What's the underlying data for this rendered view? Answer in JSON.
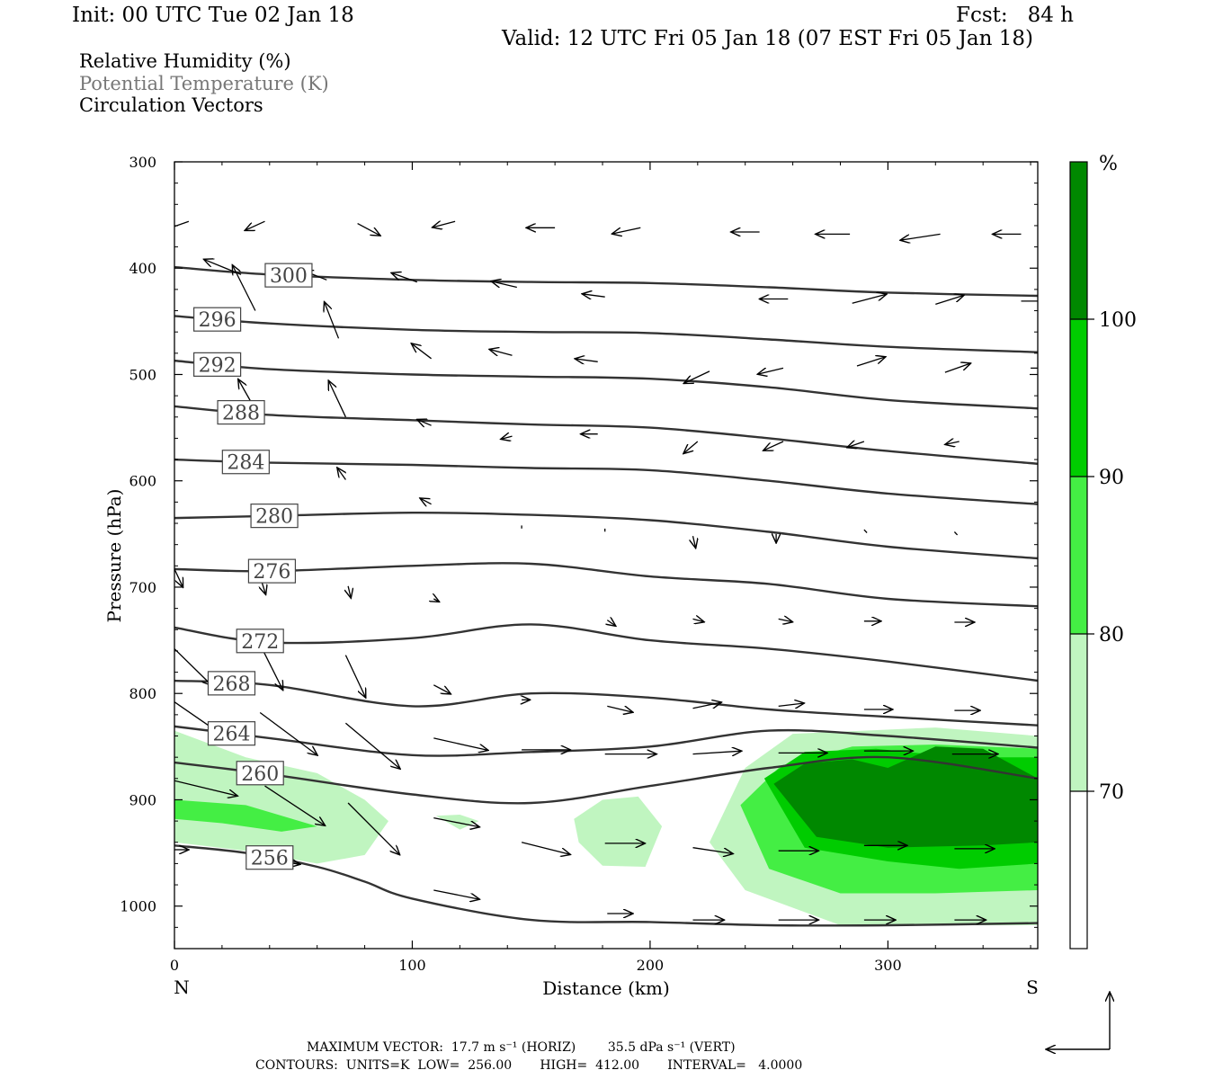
{
  "header": {
    "init": "Init: 00 UTC Tue 02 Jan 18",
    "fcst": "Fcst:   84 h",
    "valid": "Valid: 12 UTC Fri 05 Jan 18 (07 EST Fri 05 Jan 18)"
  },
  "legend": {
    "rh": "Relative Humidity (%)",
    "theta": "Potential Temperature (K)",
    "vectors": "Circulation Vectors"
  },
  "footer": {
    "max_vector": "MAXIMUM VECTOR:  17.7 m s⁻¹ (HORIZ)        35.5 dPa s⁻¹ (VERT)",
    "contours": "CONTOURS:  UNITS=K  LOW=  256.00       HIGH=  412.00       INTERVAL=   4.0000"
  },
  "chart_data": {
    "type": "cross-section",
    "xlabel": "Distance (km)",
    "ylabel": "Pressure (hPa)",
    "xlim": [
      0,
      363
    ],
    "ylim": [
      1040,
      300
    ],
    "x_ticks": [
      "0",
      "100",
      "200",
      "300"
    ],
    "y_ticks": [
      "300",
      "400",
      "500",
      "600",
      "700",
      "800",
      "900",
      "1000"
    ],
    "x_end_labels": {
      "left": "N",
      "right": "S"
    },
    "colorbar": {
      "unit": "%",
      "levels": [
        "70",
        "80",
        "90",
        "100"
      ],
      "colors": [
        "#ffffff",
        "#c0f5c0",
        "#44ee44",
        "#00cc00",
        "#008800"
      ]
    },
    "colors": {
      "isentrope": "#333333",
      "label_box": "#444444",
      "vector": "#000000"
    },
    "isentropes": [
      {
        "theta": 300,
        "x": [
          0,
          40,
          100,
          150,
          200,
          250,
          300,
          363
        ],
        "p": [
          399,
          406,
          411,
          413,
          414,
          418,
          423,
          426
        ],
        "label_at": 48
      },
      {
        "theta": 296,
        "x": [
          0,
          40,
          100,
          150,
          200,
          250,
          300,
          363
        ],
        "p": [
          445,
          452,
          458,
          460,
          461,
          467,
          474,
          479
        ],
        "label_at": 18
      },
      {
        "theta": 292,
        "x": [
          0,
          40,
          100,
          150,
          200,
          250,
          300,
          363
        ],
        "p": [
          487,
          495,
          500,
          502,
          504,
          512,
          524,
          532
        ],
        "label_at": 18
      },
      {
        "theta": 288,
        "x": [
          0,
          40,
          100,
          150,
          200,
          250,
          300,
          363
        ],
        "p": [
          530,
          538,
          543,
          547,
          550,
          560,
          572,
          584
        ],
        "label_at": 28
      },
      {
        "theta": 284,
        "x": [
          0,
          40,
          100,
          150,
          200,
          250,
          300,
          363
        ],
        "p": [
          580,
          583,
          585,
          588,
          590,
          600,
          612,
          622
        ],
        "label_at": 30
      },
      {
        "theta": 280,
        "x": [
          0,
          40,
          100,
          150,
          200,
          250,
          300,
          363
        ],
        "p": [
          635,
          633,
          630,
          632,
          637,
          648,
          662,
          673
        ],
        "label_at": 42
      },
      {
        "theta": 276,
        "x": [
          0,
          40,
          100,
          150,
          200,
          250,
          300,
          363
        ],
        "p": [
          683,
          685,
          680,
          678,
          690,
          697,
          711,
          718
        ],
        "label_at": 41
      },
      {
        "theta": 272,
        "x": [
          0,
          40,
          100,
          150,
          200,
          250,
          300,
          363
        ],
        "p": [
          738,
          752,
          748,
          735,
          750,
          758,
          770,
          788
        ],
        "label_at": 36
      },
      {
        "theta": 268,
        "x": [
          0,
          40,
          100,
          150,
          200,
          250,
          300,
          363
        ],
        "p": [
          788,
          792,
          812,
          800,
          804,
          815,
          822,
          830
        ],
        "label_at": 24
      },
      {
        "theta": 264,
        "x": [
          0,
          40,
          100,
          150,
          200,
          250,
          300,
          363
        ],
        "p": [
          831,
          842,
          858,
          855,
          850,
          835,
          840,
          851
        ],
        "label_at": 24
      },
      {
        "theta": 260,
        "x": [
          0,
          40,
          100,
          150,
          200,
          250,
          300,
          363
        ],
        "p": [
          865,
          876,
          895,
          903,
          887,
          870,
          860,
          880
        ],
        "label_at": 36
      },
      {
        "theta": 256,
        "x": [
          0,
          30,
          60,
          80,
          100,
          150,
          200,
          250,
          300,
          363
        ],
        "p": [
          943,
          950,
          963,
          977,
          993,
          1013,
          1015,
          1018,
          1018,
          1016
        ],
        "label_at": 40
      }
    ],
    "rh_regions": [
      {
        "level": "70",
        "x": [
          0,
          30,
          60,
          80,
          90,
          80,
          60,
          30,
          0
        ],
        "p": [
          835,
          860,
          875,
          900,
          920,
          952,
          960,
          948,
          940
        ]
      },
      {
        "level": "70",
        "x": [
          168,
          180,
          195,
          205,
          198,
          180,
          170,
          168
        ],
        "p": [
          918,
          900,
          897,
          925,
          963,
          962,
          940,
          918
        ]
      },
      {
        "level": "70",
        "x": [
          110,
          120,
          128,
          120,
          110
        ],
        "p": [
          915,
          914,
          920,
          928,
          915
        ]
      },
      {
        "level": "70",
        "x": [
          225,
          240,
          260,
          290,
          320,
          363,
          363,
          330,
          280,
          240,
          225
        ],
        "p": [
          940,
          870,
          838,
          835,
          832,
          840,
          1018,
          1018,
          1018,
          985,
          940
        ]
      },
      {
        "level": "80",
        "x": [
          0,
          30,
          60,
          45,
          20,
          0
        ],
        "p": [
          900,
          905,
          925,
          930,
          922,
          918
        ]
      },
      {
        "level": "80",
        "x": [
          238,
          255,
          285,
          320,
          363,
          363,
          320,
          280,
          250,
          238
        ],
        "p": [
          905,
          868,
          850,
          848,
          852,
          985,
          988,
          988,
          965,
          905
        ]
      },
      {
        "level": "90",
        "x": [
          248,
          265,
          295,
          330,
          363,
          363,
          330,
          300,
          265,
          248
        ],
        "p": [
          880,
          855,
          852,
          860,
          860,
          960,
          965,
          958,
          945,
          880
        ]
      },
      {
        "level": "100",
        "x": [
          252,
          265,
          285,
          300,
          320,
          340,
          363,
          363,
          340,
          300,
          270,
          252
        ],
        "p": [
          885,
          866,
          862,
          870,
          850,
          852,
          880,
          940,
          943,
          945,
          935,
          885
        ]
      }
    ],
    "vectors": [
      {
        "x": 6,
        "p": 356,
        "u": -9,
        "w": -3
      },
      {
        "x": 38,
        "p": 356,
        "u": -7,
        "w": -3
      },
      {
        "x": 77,
        "p": 358,
        "u": 8,
        "w": -4
      },
      {
        "x": 118,
        "p": 356,
        "u": -8,
        "w": -2
      },
      {
        "x": 160,
        "p": 362,
        "u": -10,
        "w": 0
      },
      {
        "x": 196,
        "p": 362,
        "u": -10,
        "w": -2
      },
      {
        "x": 246,
        "p": 366,
        "u": -10,
        "w": 0
      },
      {
        "x": 284,
        "p": 368,
        "u": -12,
        "w": 0
      },
      {
        "x": 322,
        "p": 368,
        "u": -14,
        "w": -2
      },
      {
        "x": 356,
        "p": 368,
        "u": -10,
        "w": 0
      },
      {
        "x": 28,
        "p": 406,
        "u": -13,
        "w": 5
      },
      {
        "x": 64,
        "p": 411,
        "u": -8,
        "w": 3
      },
      {
        "x": 102,
        "p": 413,
        "u": -9,
        "w": 3
      },
      {
        "x": 144,
        "p": 418,
        "u": -9,
        "w": 2
      },
      {
        "x": 181,
        "p": 427,
        "u": -8,
        "w": 1
      },
      {
        "x": 258,
        "p": 429,
        "u": -10,
        "w": 0
      },
      {
        "x": 285,
        "p": 433,
        "u": 12,
        "w": 3
      },
      {
        "x": 320,
        "p": 434,
        "u": 10,
        "w": 3
      },
      {
        "x": 356,
        "p": 431,
        "u": 10,
        "w": 0
      },
      {
        "x": 34,
        "p": 440,
        "u": -8,
        "w": 15
      },
      {
        "x": 69,
        "p": 466,
        "u": -5,
        "w": 12
      },
      {
        "x": 108,
        "p": 485,
        "u": -7,
        "w": 5
      },
      {
        "x": 142,
        "p": 482,
        "u": -8,
        "w": 2
      },
      {
        "x": 178,
        "p": 488,
        "u": -8,
        "w": 1
      },
      {
        "x": 225,
        "p": 497,
        "u": -9,
        "w": -4
      },
      {
        "x": 256,
        "p": 494,
        "u": -9,
        "w": -2
      },
      {
        "x": 287,
        "p": 492,
        "u": 10,
        "w": 3
      },
      {
        "x": 324,
        "p": 498,
        "u": 9,
        "w": 3
      },
      {
        "x": 360,
        "p": 494,
        "u": 8,
        "w": 0
      },
      {
        "x": 34,
        "p": 533,
        "u": -6,
        "w": 10
      },
      {
        "x": 72,
        "p": 540,
        "u": -6,
        "w": 12
      },
      {
        "x": 108,
        "p": 548,
        "u": -5,
        "w": 2
      },
      {
        "x": 142,
        "p": 558,
        "u": -4,
        "w": -1
      },
      {
        "x": 178,
        "p": 556,
        "u": -6,
        "w": 0
      },
      {
        "x": 220,
        "p": 563,
        "u": -5,
        "w": -4
      },
      {
        "x": 256,
        "p": 563,
        "u": -7,
        "w": -3
      },
      {
        "x": 290,
        "p": 563,
        "u": -6,
        "w": -2
      },
      {
        "x": 330,
        "p": 563,
        "u": -5,
        "w": -1
      },
      {
        "x": 36,
        "p": 605,
        "u": 0,
        "w": 0
      },
      {
        "x": 72,
        "p": 599,
        "u": -3,
        "w": 4
      },
      {
        "x": 108,
        "p": 622,
        "u": -4,
        "w": 2
      },
      {
        "x": 146,
        "p": 642,
        "u": 0,
        "w": -1
      },
      {
        "x": 181,
        "p": 645,
        "u": 0,
        "w": -1
      },
      {
        "x": 218,
        "p": 652,
        "u": 1,
        "w": -4
      },
      {
        "x": 253,
        "p": 650,
        "u": 0,
        "w": -3
      },
      {
        "x": 290,
        "p": 646,
        "u": 1,
        "w": -1
      },
      {
        "x": 328,
        "p": 648,
        "u": 1,
        "w": -1
      },
      {
        "x": 0,
        "p": 683,
        "u": 3,
        "w": -6
      },
      {
        "x": 36,
        "p": 690,
        "u": 2,
        "w": -6
      },
      {
        "x": 73,
        "p": 699,
        "u": 1,
        "w": -4
      },
      {
        "x": 109,
        "p": 711,
        "u": 2,
        "w": -1
      },
      {
        "x": 146,
        "p": 722,
        "u": 0,
        "w": 0
      },
      {
        "x": 182,
        "p": 731,
        "u": 3,
        "w": -2
      },
      {
        "x": 218,
        "p": 730,
        "u": 4,
        "w": -1
      },
      {
        "x": 254,
        "p": 730,
        "u": 5,
        "w": -1
      },
      {
        "x": 290,
        "p": 732,
        "u": 6,
        "w": 0
      },
      {
        "x": 328,
        "p": 733,
        "u": 7,
        "w": 0
      },
      {
        "x": 0,
        "p": 758,
        "u": 13,
        "w": -12
      },
      {
        "x": 36,
        "p": 754,
        "u": 8,
        "w": -15
      },
      {
        "x": 72,
        "p": 764,
        "u": 7,
        "w": -14
      },
      {
        "x": 109,
        "p": 792,
        "u": 6,
        "w": -3
      },
      {
        "x": 146,
        "p": 806,
        "u": 3,
        "w": 0
      },
      {
        "x": 182,
        "p": 812,
        "u": 9,
        "w": -2
      },
      {
        "x": 218,
        "p": 814,
        "u": 10,
        "w": 2
      },
      {
        "x": 254,
        "p": 812,
        "u": 9,
        "w": 1
      },
      {
        "x": 290,
        "p": 815,
        "u": 10,
        "w": 0
      },
      {
        "x": 328,
        "p": 816,
        "u": 9,
        "w": 0
      },
      {
        "x": 0,
        "p": 808,
        "u": 20,
        "w": -13
      },
      {
        "x": 36,
        "p": 818,
        "u": 20,
        "w": -14
      },
      {
        "x": 72,
        "p": 828,
        "u": 19,
        "w": -15
      },
      {
        "x": 109,
        "p": 842,
        "u": 19,
        "w": -4
      },
      {
        "x": 146,
        "p": 853,
        "u": 17,
        "w": 0
      },
      {
        "x": 181,
        "p": 857,
        "u": 18,
        "w": 0
      },
      {
        "x": 218,
        "p": 857,
        "u": 17,
        "w": 1
      },
      {
        "x": 254,
        "p": 856,
        "u": 17,
        "w": 0
      },
      {
        "x": 290,
        "p": 854,
        "u": 17,
        "w": 0
      },
      {
        "x": 327,
        "p": 857,
        "u": 16,
        "w": 0
      },
      {
        "x": 0,
        "p": 882,
        "u": 22,
        "w": -5
      },
      {
        "x": 38,
        "p": 887,
        "u": 21,
        "w": -13
      },
      {
        "x": 73,
        "p": 903,
        "u": 18,
        "w": -17
      },
      {
        "x": 109,
        "p": 917,
        "u": 16,
        "w": -3
      },
      {
        "x": 146,
        "p": 940,
        "u": 17,
        "w": -4
      },
      {
        "x": 181,
        "p": 941,
        "u": 14,
        "w": 0
      },
      {
        "x": 218,
        "p": 945,
        "u": 14,
        "w": -2
      },
      {
        "x": 254,
        "p": 948,
        "u": 14,
        "w": 0
      },
      {
        "x": 290,
        "p": 943,
        "u": 15,
        "w": 0
      },
      {
        "x": 328,
        "p": 946,
        "u": 14,
        "w": 0
      },
      {
        "x": 0,
        "p": 947,
        "u": 5,
        "w": 0
      },
      {
        "x": 36,
        "p": 955,
        "u": 14,
        "w": -2
      },
      {
        "x": 109,
        "p": 985,
        "u": 16,
        "w": -3
      },
      {
        "x": 182,
        "p": 1007,
        "u": 9,
        "w": 0
      },
      {
        "x": 218,
        "p": 1013,
        "u": 11,
        "w": 0
      },
      {
        "x": 254,
        "p": 1013,
        "u": 14,
        "w": 0
      },
      {
        "x": 290,
        "p": 1013,
        "u": 11,
        "w": 0
      },
      {
        "x": 328,
        "p": 1013,
        "u": 11,
        "w": 0
      }
    ]
  }
}
